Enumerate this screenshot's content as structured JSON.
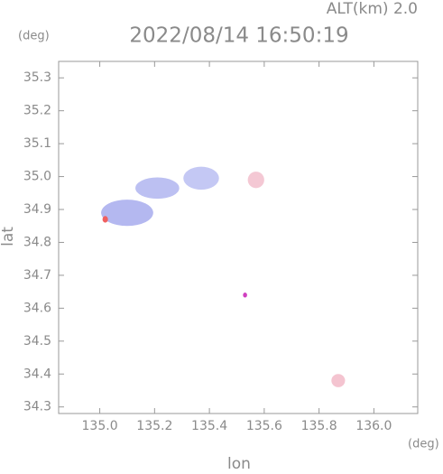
{
  "chart_data": {
    "type": "echo",
    "title": "2022/08/14 16:50:19",
    "altitude_label": "ALT(km) 2.0",
    "y_unit": "(deg)",
    "x_unit": "(deg)",
    "xlabel": "lon",
    "ylabel": "lat",
    "xlim": [
      134.85,
      136.16
    ],
    "ylim": [
      34.28,
      35.35
    ],
    "xticks": [
      {
        "value": 135,
        "label": "135.0"
      },
      135.2,
      135.4,
      135.6,
      135.8,
      {
        "value": 136,
        "label": "136.0"
      }
    ],
    "yticks": [
      34.3,
      34.4,
      34.5,
      34.6,
      34.7,
      34.8,
      34.9,
      {
        "value": 35,
        "label": "35.0"
      },
      35.1,
      35.2,
      35.3
    ],
    "echoes": {
      "x": [
        135.1,
        135.21,
        135.37,
        135.57,
        135.53,
        135.87,
        135.02
      ],
      "y": [
        34.89,
        34.965,
        34.995,
        34.99,
        34.64,
        34.38,
        34.87
      ],
      "widths": [
        0.19,
        0.16,
        0.13,
        0.06,
        0.015,
        0.05,
        0.02
      ],
      "heights": [
        0.08,
        0.065,
        0.07,
        0.05,
        0.015,
        0.04,
        0.02
      ],
      "colors": [
        "#b4b8f0",
        "#bcc0f2",
        "#c4c8f4",
        "#f4c8d4",
        "#d040c0",
        "#f4c4d0",
        "#f06060"
      ]
    }
  }
}
